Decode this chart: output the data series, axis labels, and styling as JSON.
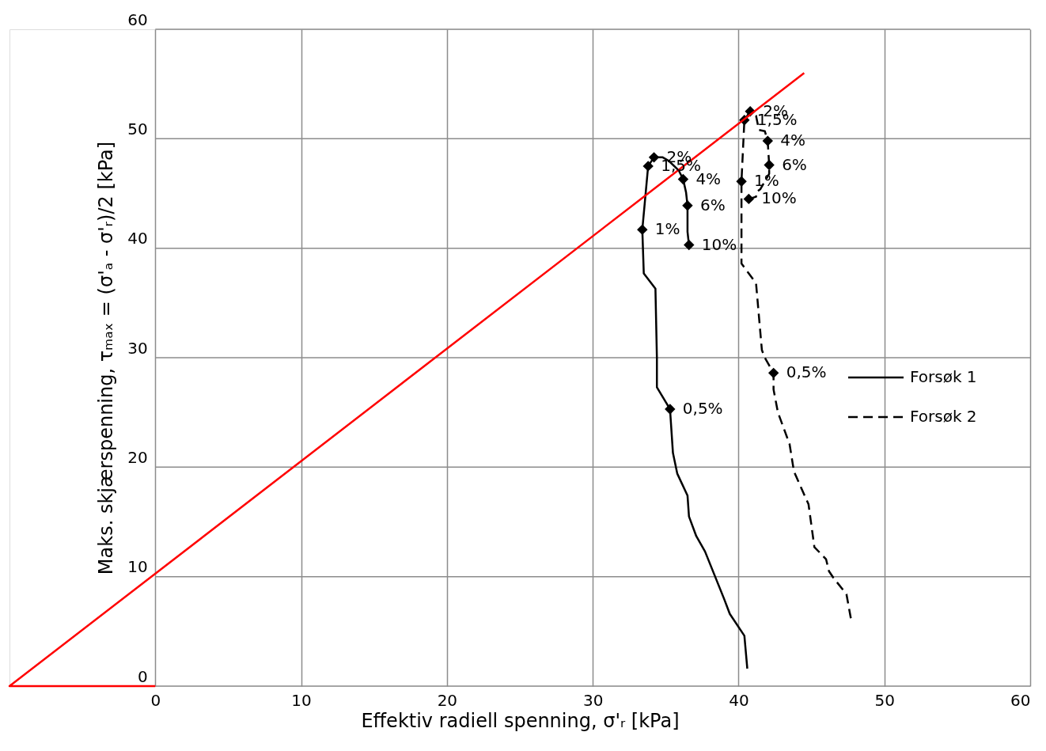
{
  "chart_data": {
    "type": "line",
    "xlabel": "Effektiv radiell spenning,  σ'ᵣ [kPa]",
    "ylabel": "Maks. skjærspenning, τₘₐₓ = (σ'ₐ - σ'ᵣ)/2  [kPa]",
    "xlim": [
      -10,
      60
    ],
    "xticks": [
      0,
      10,
      20,
      30,
      40,
      50,
      60
    ],
    "ylim": [
      0,
      60
    ],
    "yticks": [
      0,
      10,
      20,
      30,
      40,
      50,
      60
    ],
    "grid": true,
    "legend": "right",
    "series": [
      {
        "name": "Forsøk 1",
        "color": "#000000",
        "line_style": "solid",
        "marker": "none",
        "x": [
          40.6,
          40.4,
          39.4,
          39.0,
          37.7,
          37.1,
          36.6,
          36.5,
          35.8,
          35.5,
          35.3,
          34.4,
          34.4,
          34.3,
          33.5,
          33.4,
          33.8,
          34.2,
          34.8,
          35.2,
          35.9,
          36.2,
          36.4,
          36.5,
          36.5,
          36.6
        ],
        "values": [
          1.6,
          4.6,
          6.6,
          8.0,
          12.3,
          13.7,
          15.5,
          17.4,
          19.4,
          21.3,
          25.3,
          27.3,
          30.0,
          36.3,
          37.7,
          41.7,
          47.5,
          48.3,
          48.3,
          48.0,
          47.1,
          46.3,
          45.1,
          43.9,
          41.5,
          40.3
        ]
      },
      {
        "name": "Forsøk 2",
        "color": "#000000",
        "line_style": "dashed",
        "marker": "none",
        "x": [
          47.7,
          47.4,
          46.5,
          46.2,
          46.0,
          45.2,
          44.8,
          43.8,
          43.5,
          42.7,
          42.4,
          42.4,
          41.8,
          41.6,
          41.2,
          40.7,
          40.2,
          40.2,
          40.4,
          40.8,
          41.2,
          41.4,
          41.8,
          42.0,
          42.1,
          42.1,
          41.5,
          41.2,
          41.2,
          40.7
        ],
        "values": [
          6.2,
          8.4,
          9.9,
          10.5,
          11.6,
          12.7,
          16.6,
          19.6,
          22.1,
          25.0,
          27.1,
          28.6,
          30.0,
          30.7,
          36.8,
          37.7,
          38.6,
          46.1,
          51.7,
          52.5,
          52.1,
          50.8,
          50.7,
          49.8,
          47.6,
          46.8,
          45.4,
          45.1,
          44.7,
          44.5
        ]
      },
      {
        "type": "scatter",
        "color": "#000000",
        "marker": "diamond",
        "x": [
          35.3,
          33.4,
          33.8,
          34.2,
          36.2,
          36.5,
          36.6
        ],
        "values": [
          25.3,
          41.7,
          47.5,
          48.3,
          46.3,
          43.9,
          40.3
        ]
      },
      {
        "type": "scatter",
        "color": "#000000",
        "marker": "diamond",
        "x": [
          42.4,
          40.7,
          40.4,
          40.8,
          42.0,
          42.1,
          40.2
        ],
        "values": [
          28.6,
          44.5,
          51.7,
          52.5,
          49.8,
          47.6,
          46.1
        ]
      },
      {
        "color": "#ff0000",
        "line_style": "solid",
        "marker": "none",
        "x": [
          0,
          -10,
          44.5
        ],
        "values": [
          0,
          0,
          56
        ]
      }
    ],
    "annotations": [
      {
        "text": "2%",
        "x": 34.2,
        "y": 48.3
      },
      {
        "text": "1,5%",
        "x": 33.8,
        "y": 47.5
      },
      {
        "text": "4%",
        "x": 36.2,
        "y": 46.3
      },
      {
        "text": "6%",
        "x": 36.5,
        "y": 43.9
      },
      {
        "text": "1%",
        "x": 33.4,
        "y": 41.7
      },
      {
        "text": "10%",
        "x": 36.6,
        "y": 40.3
      },
      {
        "text": "0,5%",
        "x": 35.3,
        "y": 25.3
      },
      {
        "text": "2%",
        "x": 40.8,
        "y": 52.5
      },
      {
        "text": "4%",
        "x": 42.0,
        "y": 49.8
      },
      {
        "text": "1,5%",
        "x": 40.4,
        "y": 51.7
      },
      {
        "text": "6%",
        "x": 42.1,
        "y": 47.6
      },
      {
        "text": "10%",
        "x": 40.7,
        "y": 44.5
      },
      {
        "text": "1%",
        "x": 40.2,
        "y": 46.1
      },
      {
        "text": "0,5%",
        "x": 42.4,
        "y": 28.6
      }
    ]
  }
}
